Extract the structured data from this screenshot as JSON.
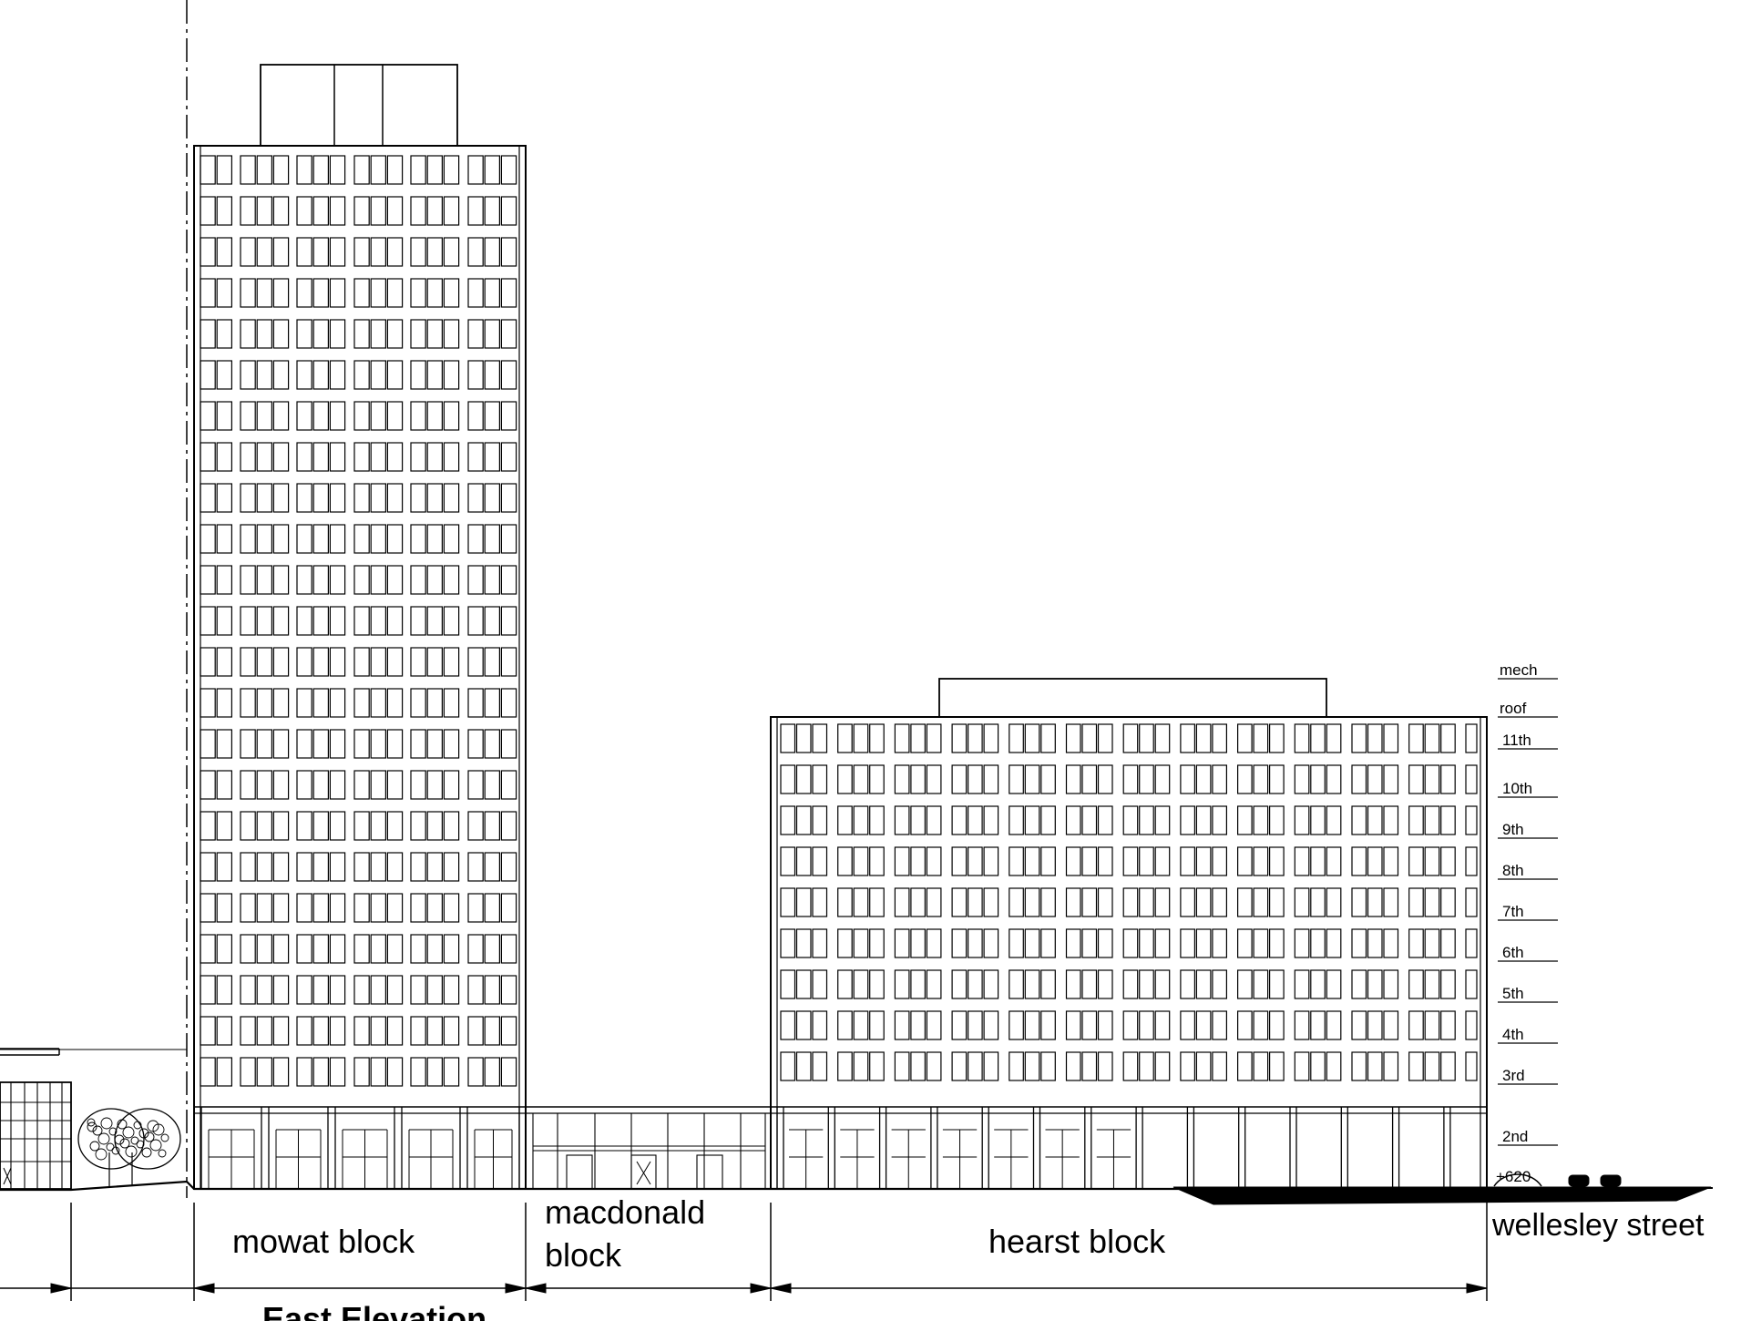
{
  "title": "East Elevation",
  "blocks": {
    "mowat": "mowat block",
    "macdonald_line1": "macdonald",
    "macdonald_line2": "block",
    "hearst": "hearst block"
  },
  "street": "wellesley street",
  "level_marker": "+620",
  "floor_labels": [
    "mech",
    "roof",
    "11th",
    "10th",
    "9th",
    "8th",
    "7th",
    "6th",
    "5th",
    "4th",
    "3rd",
    "2nd"
  ],
  "colors": {
    "line": "#000000",
    "background": "#ffffff"
  }
}
